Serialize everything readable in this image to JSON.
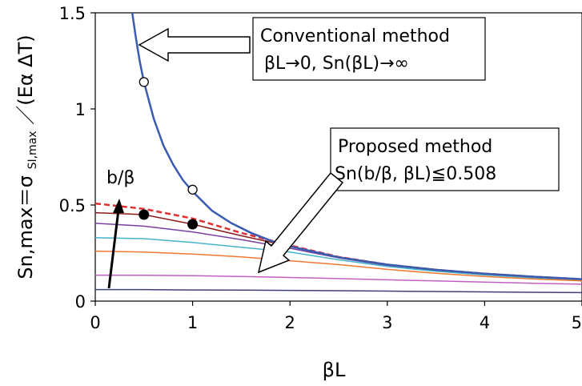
{
  "chart_data": {
    "type": "line",
    "xlabel": "βL",
    "ylabel": "Sn,max＝σ SI,max／(Eα ΔT)",
    "ylabel_parts": {
      "pre": "Sn,max＝σ",
      "sub": "SI,max",
      "post": "／(Eα ΔT)"
    },
    "xlim": [
      0,
      5
    ],
    "ylim": [
      0,
      1.5
    ],
    "x_ticks": [
      "0",
      "1",
      "2",
      "3",
      "4",
      "5"
    ],
    "y_ticks": [
      "0",
      "0.5",
      "1",
      "1.5"
    ],
    "grid": false,
    "legend": "none",
    "conventional_curve": {
      "color": "#3a5bb0",
      "x": [
        0.38,
        0.42,
        0.46,
        0.5,
        0.6,
        0.7,
        0.8,
        0.9,
        1.0,
        1.2,
        1.4,
        1.6,
        1.8,
        2.0,
        2.5,
        3.0,
        3.5,
        4.0,
        4.5,
        5.0
      ],
      "y": [
        1.5,
        1.36,
        1.24,
        1.14,
        0.95,
        0.81,
        0.71,
        0.63,
        0.57,
        0.47,
        0.405,
        0.355,
        0.315,
        0.285,
        0.228,
        0.19,
        0.163,
        0.143,
        0.127,
        0.114
      ]
    },
    "proposed_limit": {
      "color": "#e03030",
      "x": [
        0,
        0.5,
        1.0,
        1.5,
        2.0,
        2.5,
        3.0,
        3.5,
        4.0,
        4.5,
        5.0
      ],
      "y": [
        0.508,
        0.48,
        0.43,
        0.355,
        0.29,
        0.23,
        0.19,
        0.163,
        0.143,
        0.127,
        0.114
      ]
    },
    "series": [
      {
        "color": "#8b1a1a",
        "x": [
          0,
          0.5,
          1.0,
          1.5,
          2.0,
          2.5,
          3.0,
          3.5,
          4.0,
          4.5,
          5.0
        ],
        "y": [
          0.46,
          0.45,
          0.4,
          0.34,
          0.285,
          0.23,
          0.19,
          0.16,
          0.14,
          0.125,
          0.112
        ]
      },
      {
        "color": "#7b3fa0",
        "x": [
          0,
          0.5,
          1.0,
          1.5,
          2.0,
          2.5,
          3.0,
          3.5,
          4.0,
          4.5,
          5.0
        ],
        "y": [
          0.405,
          0.39,
          0.36,
          0.32,
          0.275,
          0.225,
          0.185,
          0.158,
          0.138,
          0.123,
          0.111
        ]
      },
      {
        "color": "#45b5cc",
        "x": [
          0,
          0.5,
          1.0,
          1.5,
          2.0,
          2.5,
          3.0,
          3.5,
          4.0,
          4.5,
          5.0
        ],
        "y": [
          0.33,
          0.325,
          0.305,
          0.28,
          0.255,
          0.215,
          0.18,
          0.155,
          0.136,
          0.121,
          0.11
        ]
      },
      {
        "color": "#f07830",
        "x": [
          0,
          0.5,
          1.0,
          1.5,
          2.0,
          2.5,
          3.0,
          3.5,
          4.0,
          4.5,
          5.0
        ],
        "y": [
          0.26,
          0.255,
          0.245,
          0.23,
          0.21,
          0.19,
          0.165,
          0.145,
          0.128,
          0.115,
          0.105
        ]
      },
      {
        "color": "#c060c0",
        "x": [
          0,
          0.5,
          1.0,
          1.5,
          2.0,
          2.5,
          3.0,
          3.5,
          4.0,
          4.5,
          5.0
        ],
        "y": [
          0.135,
          0.134,
          0.132,
          0.128,
          0.123,
          0.117,
          0.111,
          0.105,
          0.099,
          0.093,
          0.088
        ]
      },
      {
        "color": "#40407a",
        "x": [
          0,
          0.5,
          1.0,
          1.5,
          2.0,
          2.5,
          3.0,
          3.5,
          4.0,
          4.5,
          5.0
        ],
        "y": [
          0.06,
          0.06,
          0.058,
          0.057,
          0.056,
          0.054,
          0.052,
          0.05,
          0.048,
          0.046,
          0.044
        ]
      }
    ],
    "open_points": {
      "x": [
        0.5,
        1.0
      ],
      "y": [
        1.14,
        0.58
      ]
    },
    "filled_points": {
      "x": [
        0.5,
        1.0
      ],
      "y": [
        0.45,
        0.4
      ]
    },
    "annotations": {
      "conventional_line1": "Conventional method",
      "conventional_line2": "βL→0, Sn(βL)→∞",
      "proposed_line1": "Proposed method",
      "proposed_line2": "Sn(b/β, βL)≦0.508",
      "arrow_label": "b/β"
    }
  }
}
